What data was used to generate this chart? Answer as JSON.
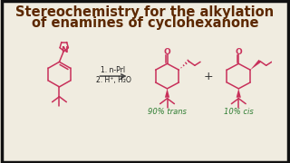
{
  "title_line1": "Stereochemistry for the alkylation",
  "title_line2": "of enamines of cyclohexanone",
  "title_color": "#5c2800",
  "title_fontsize": 10.5,
  "bg_color": "#f0ece0",
  "molecule_color": "#c8305a",
  "reagent_color": "#1a1a1a",
  "label_color": "#2e7d32",
  "reagent_line1": "1. n-PrI",
  "reagent_line2": "2. H⁺, H₂O",
  "product1_label": "90% trans",
  "product2_label": "10% cis",
  "border_color": "#111111",
  "plus_color": "#333333"
}
